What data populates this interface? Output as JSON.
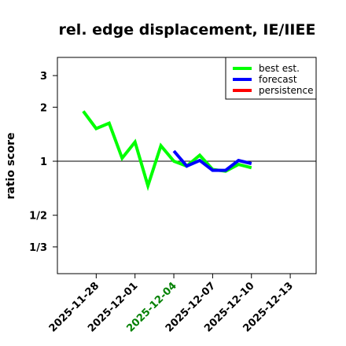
{
  "chart_data": {
    "type": "line",
    "title": "rel. edge displacement, IE/IIEE",
    "ylabel": "ratio score",
    "y_scale": "log",
    "ylim": [
      0.2364,
      3.788
    ],
    "xlim": [
      "2025-11-25",
      "2025-12-15"
    ],
    "y_ticks": [
      {
        "label": "3",
        "value": 3
      },
      {
        "label": "2",
        "value": 2
      },
      {
        "label": "1",
        "value": 1
      },
      {
        "label": "1/2",
        "value": 0.5
      },
      {
        "label": "1/3",
        "value": 0.3333
      }
    ],
    "x_ticks": [
      {
        "label": "2025-11-28",
        "date": "2025-11-28",
        "color": "#000000"
      },
      {
        "label": "2025-12-01",
        "date": "2025-12-01",
        "color": "#000000"
      },
      {
        "label": "2025-12-04",
        "date": "2025-12-04",
        "color": "#008000"
      },
      {
        "label": "2025-12-07",
        "date": "2025-12-07",
        "color": "#000000"
      },
      {
        "label": "2025-12-10",
        "date": "2025-12-10",
        "color": "#000000"
      },
      {
        "label": "2025-12-13",
        "date": "2025-12-13",
        "color": "#000000"
      }
    ],
    "reference_line": 1,
    "legend_position": "top-right",
    "series": [
      {
        "name": "best est.",
        "color": "#00ff00",
        "points": [
          {
            "x": "2025-11-27",
            "y": 1.9
          },
          {
            "x": "2025-11-28",
            "y": 1.52
          },
          {
            "x": "2025-11-29",
            "y": 1.63
          },
          {
            "x": "2025-11-30",
            "y": 1.04
          },
          {
            "x": "2025-12-01",
            "y": 1.28
          },
          {
            "x": "2025-12-02",
            "y": 0.73
          },
          {
            "x": "2025-12-03",
            "y": 1.22
          },
          {
            "x": "2025-12-04",
            "y": 1.0
          },
          {
            "x": "2025-12-05",
            "y": 0.94
          },
          {
            "x": "2025-12-06",
            "y": 1.08
          },
          {
            "x": "2025-12-07",
            "y": 0.9
          },
          {
            "x": "2025-12-08",
            "y": 0.88
          },
          {
            "x": "2025-12-09",
            "y": 0.96
          },
          {
            "x": "2025-12-10",
            "y": 0.92
          }
        ]
      },
      {
        "name": "forecast",
        "color": "#0000ff",
        "points": [
          {
            "x": "2025-12-04",
            "y": 1.14
          },
          {
            "x": "2025-12-05",
            "y": 0.94
          },
          {
            "x": "2025-12-06",
            "y": 1.01
          },
          {
            "x": "2025-12-07",
            "y": 0.89
          },
          {
            "x": "2025-12-08",
            "y": 0.89
          },
          {
            "x": "2025-12-09",
            "y": 1.01
          },
          {
            "x": "2025-12-10",
            "y": 0.97
          }
        ]
      },
      {
        "name": "persistence",
        "color": "#ff0000",
        "points": []
      }
    ]
  }
}
